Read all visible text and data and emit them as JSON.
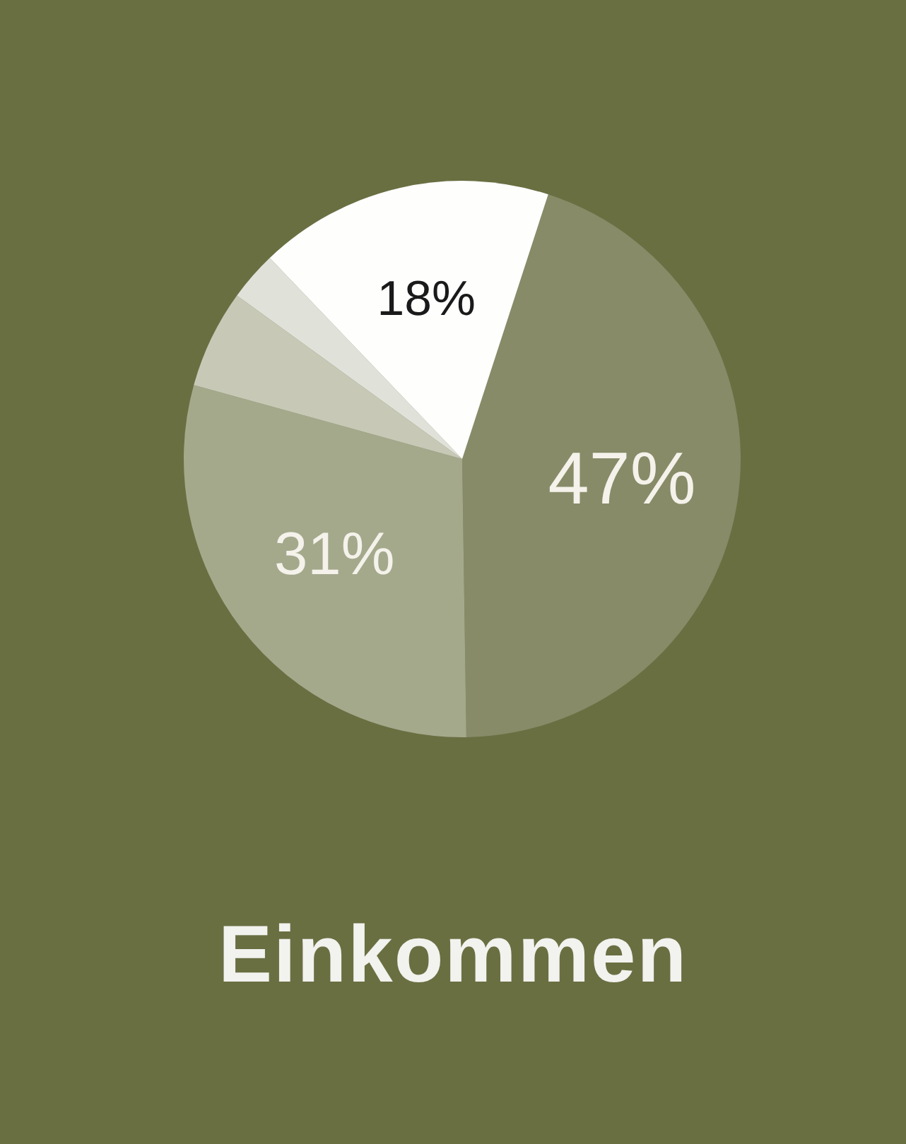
{
  "chart_data": {
    "type": "pie",
    "title": "Einkommen",
    "categories": [
      null,
      null,
      null,
      null,
      null
    ],
    "values": [
      47,
      31,
      6,
      3,
      18
    ],
    "colors": [
      "#878b68",
      "#a5a98c",
      "#c7c9b6",
      "#e0e2da",
      "#fefefd"
    ],
    "value_labels": [
      "47%",
      "31%",
      null,
      null,
      "18%"
    ]
  }
}
